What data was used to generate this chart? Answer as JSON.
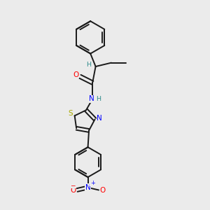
{
  "background_color": "#ebebeb",
  "bond_color": "#1a1a1a",
  "atom_colors": {
    "O": "#ff0000",
    "N": "#0000ff",
    "S": "#aaaa00",
    "C": "#1a1a1a",
    "H": "#2e8b8b"
  },
  "figsize": [
    3.0,
    3.0
  ],
  "dpi": 100
}
